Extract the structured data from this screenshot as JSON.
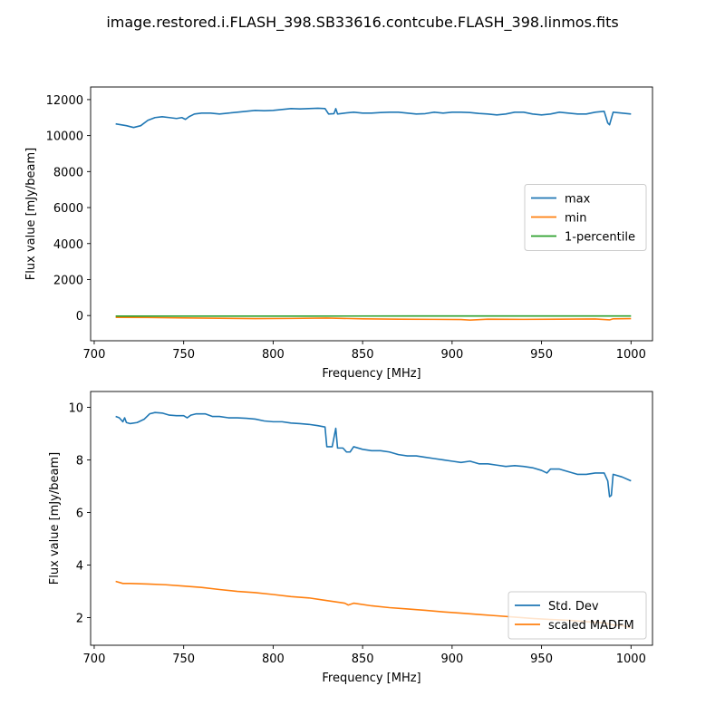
{
  "figure": {
    "title": "image.restored.i.FLASH_398.SB33616.contcube.FLASH_398.linmos.fits"
  },
  "chart_data": [
    {
      "type": "line",
      "xlabel": "Frequency [MHz]",
      "ylabel": "Flux value [mJy/beam]",
      "xlim": [
        698,
        1012
      ],
      "ylim": [
        -1400,
        12700
      ],
      "xticks": [
        700,
        750,
        800,
        850,
        900,
        950,
        1000
      ],
      "yticks": [
        0,
        2000,
        4000,
        6000,
        8000,
        10000,
        12000
      ],
      "grid": false,
      "legend_position": "center-right",
      "series": [
        {
          "name": "max",
          "color": "#1f77b4",
          "points": [
            [
              712,
              10650
            ],
            [
              715,
              10600
            ],
            [
              718,
              10550
            ],
            [
              722,
              10450
            ],
            [
              726,
              10550
            ],
            [
              730,
              10850
            ],
            [
              734,
              11000
            ],
            [
              738,
              11050
            ],
            [
              742,
              11000
            ],
            [
              746,
              10950
            ],
            [
              749,
              11000
            ],
            [
              751,
              10900
            ],
            [
              753,
              11050
            ],
            [
              756,
              11200
            ],
            [
              760,
              11250
            ],
            [
              765,
              11250
            ],
            [
              770,
              11200
            ],
            [
              775,
              11250
            ],
            [
              780,
              11300
            ],
            [
              785,
              11350
            ],
            [
              790,
              11400
            ],
            [
              795,
              11380
            ],
            [
              800,
              11400
            ],
            [
              805,
              11450
            ],
            [
              810,
              11500
            ],
            [
              815,
              11480
            ],
            [
              820,
              11500
            ],
            [
              825,
              11520
            ],
            [
              829,
              11500
            ],
            [
              831,
              11200
            ],
            [
              834,
              11220
            ],
            [
              835,
              11500
            ],
            [
              836,
              11200
            ],
            [
              840,
              11250
            ],
            [
              845,
              11300
            ],
            [
              850,
              11250
            ],
            [
              855,
              11250
            ],
            [
              860,
              11280
            ],
            [
              865,
              11300
            ],
            [
              870,
              11300
            ],
            [
              875,
              11250
            ],
            [
              880,
              11200
            ],
            [
              885,
              11220
            ],
            [
              890,
              11300
            ],
            [
              895,
              11250
            ],
            [
              900,
              11300
            ],
            [
              905,
              11300
            ],
            [
              910,
              11280
            ],
            [
              915,
              11230
            ],
            [
              920,
              11200
            ],
            [
              925,
              11150
            ],
            [
              930,
              11200
            ],
            [
              935,
              11300
            ],
            [
              940,
              11300
            ],
            [
              945,
              11200
            ],
            [
              950,
              11150
            ],
            [
              955,
              11200
            ],
            [
              960,
              11300
            ],
            [
              965,
              11250
            ],
            [
              970,
              11200
            ],
            [
              975,
              11200
            ],
            [
              980,
              11300
            ],
            [
              985,
              11350
            ],
            [
              987,
              10700
            ],
            [
              988,
              10600
            ],
            [
              990,
              11300
            ],
            [
              995,
              11250
            ],
            [
              1000,
              11200
            ]
          ]
        },
        {
          "name": "min",
          "color": "#ff7f0e",
          "points": [
            [
              712,
              -100
            ],
            [
              730,
              -110
            ],
            [
              750,
              -130
            ],
            [
              770,
              -150
            ],
            [
              790,
              -170
            ],
            [
              810,
              -160
            ],
            [
              830,
              -140
            ],
            [
              850,
              -180
            ],
            [
              870,
              -200
            ],
            [
              890,
              -210
            ],
            [
              905,
              -220
            ],
            [
              910,
              -250
            ],
            [
              920,
              -200
            ],
            [
              940,
              -210
            ],
            [
              960,
              -200
            ],
            [
              980,
              -190
            ],
            [
              988,
              -240
            ],
            [
              990,
              -180
            ],
            [
              1000,
              -170
            ]
          ]
        },
        {
          "name": "1-percentile",
          "color": "#2ca02c",
          "points": [
            [
              712,
              -30
            ],
            [
              760,
              -30
            ],
            [
              820,
              -30
            ],
            [
              880,
              -25
            ],
            [
              940,
              -25
            ],
            [
              1000,
              -25
            ]
          ]
        }
      ]
    },
    {
      "type": "line",
      "xlabel": "Frequency [MHz]",
      "ylabel": "Flux value [mJy/beam]",
      "xlim": [
        698,
        1012
      ],
      "ylim": [
        0.95,
        10.6
      ],
      "xticks": [
        700,
        750,
        800,
        850,
        900,
        950,
        1000
      ],
      "yticks": [
        2,
        4,
        6,
        8,
        10
      ],
      "grid": false,
      "legend_position": "bottom-right",
      "series": [
        {
          "name": "Std. Dev",
          "color": "#1f77b4",
          "points": [
            [
              712,
              9.65
            ],
            [
              714,
              9.6
            ],
            [
              716,
              9.45
            ],
            [
              717,
              9.6
            ],
            [
              718,
              9.42
            ],
            [
              720,
              9.38
            ],
            [
              724,
              9.42
            ],
            [
              728,
              9.55
            ],
            [
              731,
              9.75
            ],
            [
              734,
              9.8
            ],
            [
              738,
              9.78
            ],
            [
              742,
              9.7
            ],
            [
              746,
              9.68
            ],
            [
              750,
              9.68
            ],
            [
              752,
              9.6
            ],
            [
              754,
              9.7
            ],
            [
              757,
              9.75
            ],
            [
              762,
              9.75
            ],
            [
              766,
              9.65
            ],
            [
              770,
              9.65
            ],
            [
              775,
              9.6
            ],
            [
              780,
              9.6
            ],
            [
              785,
              9.58
            ],
            [
              790,
              9.55
            ],
            [
              795,
              9.48
            ],
            [
              800,
              9.45
            ],
            [
              805,
              9.45
            ],
            [
              810,
              9.4
            ],
            [
              815,
              9.38
            ],
            [
              820,
              9.35
            ],
            [
              825,
              9.3
            ],
            [
              829,
              9.25
            ],
            [
              830,
              8.5
            ],
            [
              833,
              8.5
            ],
            [
              835,
              9.2
            ],
            [
              836,
              8.45
            ],
            [
              839,
              8.45
            ],
            [
              841,
              8.3
            ],
            [
              843,
              8.3
            ],
            [
              845,
              8.5
            ],
            [
              850,
              8.4
            ],
            [
              855,
              8.35
            ],
            [
              860,
              8.35
            ],
            [
              865,
              8.3
            ],
            [
              870,
              8.2
            ],
            [
              875,
              8.15
            ],
            [
              880,
              8.15
            ],
            [
              885,
              8.1
            ],
            [
              890,
              8.05
            ],
            [
              895,
              8.0
            ],
            [
              900,
              7.95
            ],
            [
              905,
              7.9
            ],
            [
              910,
              7.95
            ],
            [
              915,
              7.85
            ],
            [
              920,
              7.85
            ],
            [
              925,
              7.8
            ],
            [
              930,
              7.75
            ],
            [
              935,
              7.78
            ],
            [
              940,
              7.75
            ],
            [
              945,
              7.7
            ],
            [
              950,
              7.6
            ],
            [
              953,
              7.5
            ],
            [
              955,
              7.65
            ],
            [
              960,
              7.65
            ],
            [
              965,
              7.55
            ],
            [
              970,
              7.45
            ],
            [
              975,
              7.45
            ],
            [
              980,
              7.5
            ],
            [
              985,
              7.5
            ],
            [
              987,
              7.2
            ],
            [
              988,
              6.6
            ],
            [
              989,
              6.65
            ],
            [
              990,
              7.45
            ],
            [
              995,
              7.35
            ],
            [
              1000,
              7.2
            ]
          ]
        },
        {
          "name": "scaled MADFM",
          "color": "#ff7f0e",
          "points": [
            [
              712,
              3.38
            ],
            [
              716,
              3.3
            ],
            [
              720,
              3.3
            ],
            [
              730,
              3.28
            ],
            [
              740,
              3.25
            ],
            [
              750,
              3.2
            ],
            [
              760,
              3.15
            ],
            [
              770,
              3.07
            ],
            [
              780,
              3.0
            ],
            [
              790,
              2.95
            ],
            [
              800,
              2.88
            ],
            [
              810,
              2.8
            ],
            [
              820,
              2.75
            ],
            [
              830,
              2.65
            ],
            [
              840,
              2.55
            ],
            [
              842,
              2.48
            ],
            [
              845,
              2.55
            ],
            [
              855,
              2.45
            ],
            [
              865,
              2.38
            ],
            [
              875,
              2.33
            ],
            [
              885,
              2.28
            ],
            [
              895,
              2.22
            ],
            [
              905,
              2.17
            ],
            [
              915,
              2.12
            ],
            [
              925,
              2.07
            ],
            [
              935,
              2.02
            ],
            [
              945,
              1.97
            ],
            [
              955,
              1.93
            ],
            [
              965,
              1.9
            ],
            [
              975,
              1.85
            ],
            [
              985,
              1.8
            ],
            [
              990,
              1.72
            ],
            [
              995,
              1.7
            ],
            [
              1000,
              1.62
            ]
          ]
        }
      ]
    }
  ]
}
